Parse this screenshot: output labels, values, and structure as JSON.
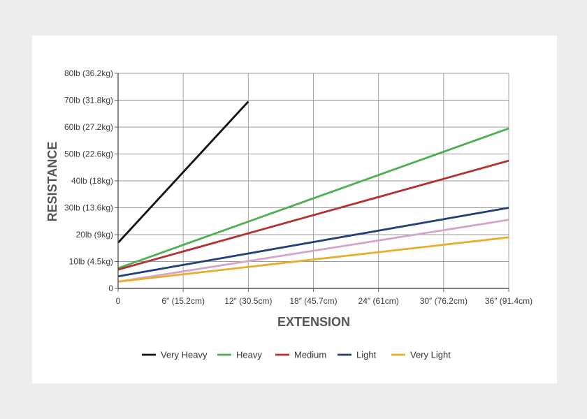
{
  "chart_data": {
    "type": "line",
    "xlabel": "EXTENSION",
    "ylabel": "RESISTANCE",
    "xlim": [
      0,
      36
    ],
    "ylim": [
      0,
      80
    ],
    "x_ticks": [
      {
        "value": 0,
        "label": "0"
      },
      {
        "value": 6,
        "label": "6″ (15.2cm)"
      },
      {
        "value": 12,
        "label": "12″ (30.5cm)"
      },
      {
        "value": 18,
        "label": "18″ (45.7cm)"
      },
      {
        "value": 24,
        "label": "24″ (61cm)"
      },
      {
        "value": 30,
        "label": "30″ (76.2cm)"
      },
      {
        "value": 36,
        "label": "36″ (91.4cm)"
      }
    ],
    "y_ticks": [
      {
        "value": 0,
        "label": "0"
      },
      {
        "value": 10,
        "label": "10lb (4.5kg)"
      },
      {
        "value": 20,
        "label": "20lb (9kg)"
      },
      {
        "value": 30,
        "label": "30lb (13.6kg)"
      },
      {
        "value": 40,
        "label": "40lb (18kg)"
      },
      {
        "value": 50,
        "label": "50lb (22.6kg)"
      },
      {
        "value": 60,
        "label": "60lb (27.2kg)"
      },
      {
        "value": 70,
        "label": "70lb (31.8kg)"
      },
      {
        "value": 80,
        "label": "80lb (36.2kg)"
      }
    ],
    "grid": true,
    "legend_position": "bottom",
    "series": [
      {
        "name": "Very Heavy",
        "color": "#111111",
        "x": [
          0,
          12
        ],
        "y": [
          17,
          69.5
        ]
      },
      {
        "name": "Heavy",
        "color": "#4caf50",
        "x": [
          0,
          36
        ],
        "y": [
          7.5,
          59.5
        ]
      },
      {
        "name": "Medium",
        "color": "#b5302f",
        "x": [
          0,
          36
        ],
        "y": [
          7,
          47.5
        ]
      },
      {
        "name": "Light",
        "color": "#233f7a",
        "x": [
          0,
          36
        ],
        "y": [
          4.5,
          30
        ]
      },
      {
        "name": "",
        "color": "#d4a5c8",
        "x": [
          0,
          36
        ],
        "y": [
          2.5,
          25.5
        ]
      },
      {
        "name": "Very Light",
        "color": "#e8ae2a",
        "x": [
          0,
          36
        ],
        "y": [
          2.5,
          19
        ]
      }
    ]
  }
}
